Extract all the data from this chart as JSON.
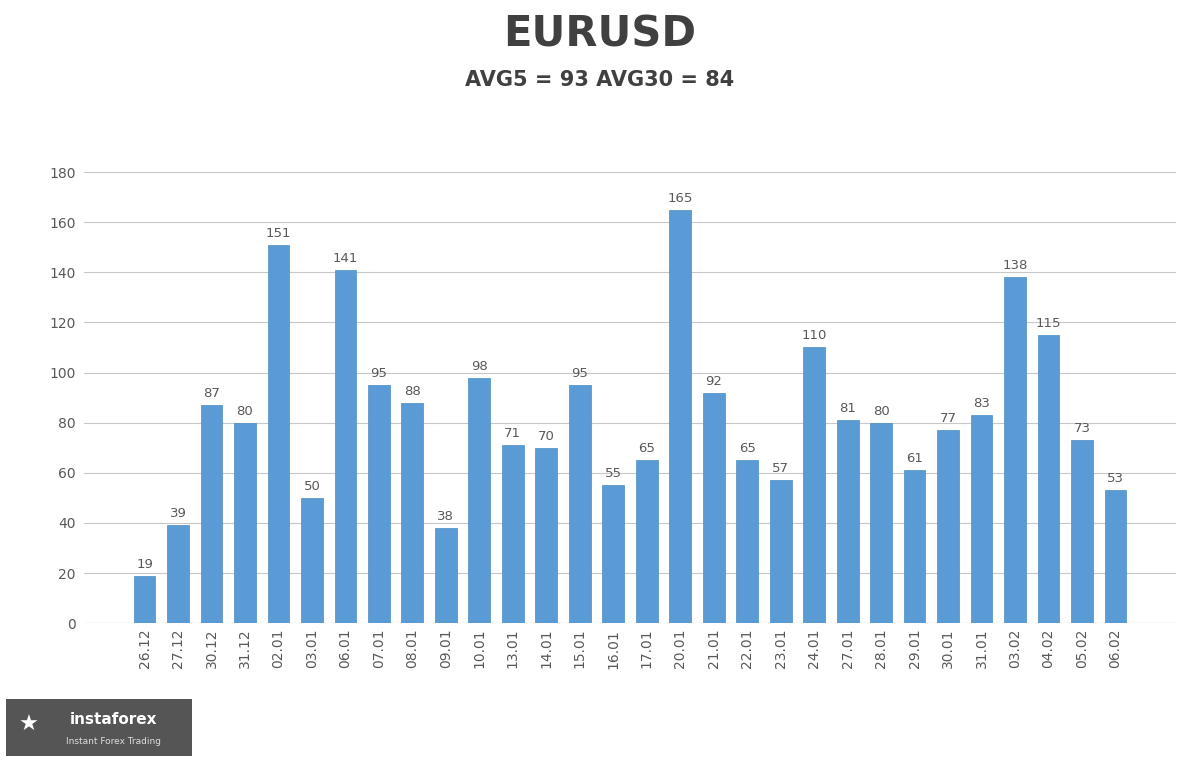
{
  "title": "EURUSD",
  "subtitle": "AVG5 = 93 AVG30 = 84",
  "categories": [
    "26.12",
    "27.12",
    "30.12",
    "31.12",
    "02.01",
    "03.01",
    "06.01",
    "07.01",
    "08.01",
    "09.01",
    "10.01",
    "13.01",
    "14.01",
    "15.01",
    "16.01",
    "17.01",
    "20.01",
    "21.01",
    "22.01",
    "23.01",
    "24.01",
    "27.01",
    "28.01",
    "29.01",
    "30.01",
    "31.01",
    "03.02",
    "04.02",
    "05.02",
    "06.02"
  ],
  "values": [
    19,
    39,
    87,
    80,
    151,
    50,
    141,
    95,
    88,
    38,
    98,
    71,
    70,
    95,
    55,
    65,
    165,
    92,
    65,
    57,
    110,
    81,
    80,
    61,
    77,
    83,
    138,
    115,
    73,
    53
  ],
  "bar_color": "#5B9BD5",
  "bar_edge_color": "#4a8ec2",
  "ylim": [
    0,
    188
  ],
  "yticks": [
    0,
    20,
    40,
    60,
    80,
    100,
    120,
    140,
    160,
    180
  ],
  "title_fontsize": 30,
  "subtitle_fontsize": 15,
  "label_fontsize": 9.5,
  "tick_fontsize": 10,
  "background_color": "#FFFFFF",
  "grid_color": "#C8C8C8",
  "title_color": "#404040",
  "subtitle_color": "#404040",
  "label_color": "#595959",
  "tick_color": "#595959",
  "logo_bg": "#555555",
  "logo_text": "instaforex",
  "logo_subtext": "Instant Forex Trading"
}
